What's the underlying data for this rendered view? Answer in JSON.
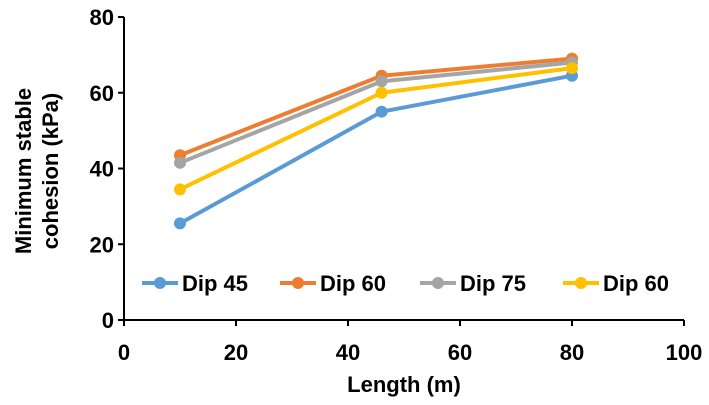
{
  "chart_data": {
    "type": "line",
    "title": "",
    "xlabel": "Length (m)",
    "ylabel_lines": [
      "Minimum stable",
      "cohesion (kPa)"
    ],
    "xlim": [
      0,
      100
    ],
    "ylim": [
      0,
      80
    ],
    "xticks": [
      "0",
      "20",
      "40",
      "60",
      "80",
      "100"
    ],
    "yticks": [
      "0",
      "20",
      "40",
      "60",
      "80"
    ],
    "grid": false,
    "legend_position": "inside-bottom",
    "x": [
      10,
      46,
      80
    ],
    "series": [
      {
        "name": "Dip 45",
        "color": "#5B9BD5",
        "values": [
          25.5,
          55,
          64.5
        ]
      },
      {
        "name": "Dip 60",
        "color": "#ED7D31",
        "values": [
          43.5,
          64.5,
          69
        ]
      },
      {
        "name": "Dip 75",
        "color": "#A5A5A5",
        "values": [
          41.5,
          63,
          68
        ]
      },
      {
        "name": "Dip 60",
        "color": "#FFC000",
        "values": [
          34.5,
          60,
          66.5
        ]
      }
    ]
  }
}
